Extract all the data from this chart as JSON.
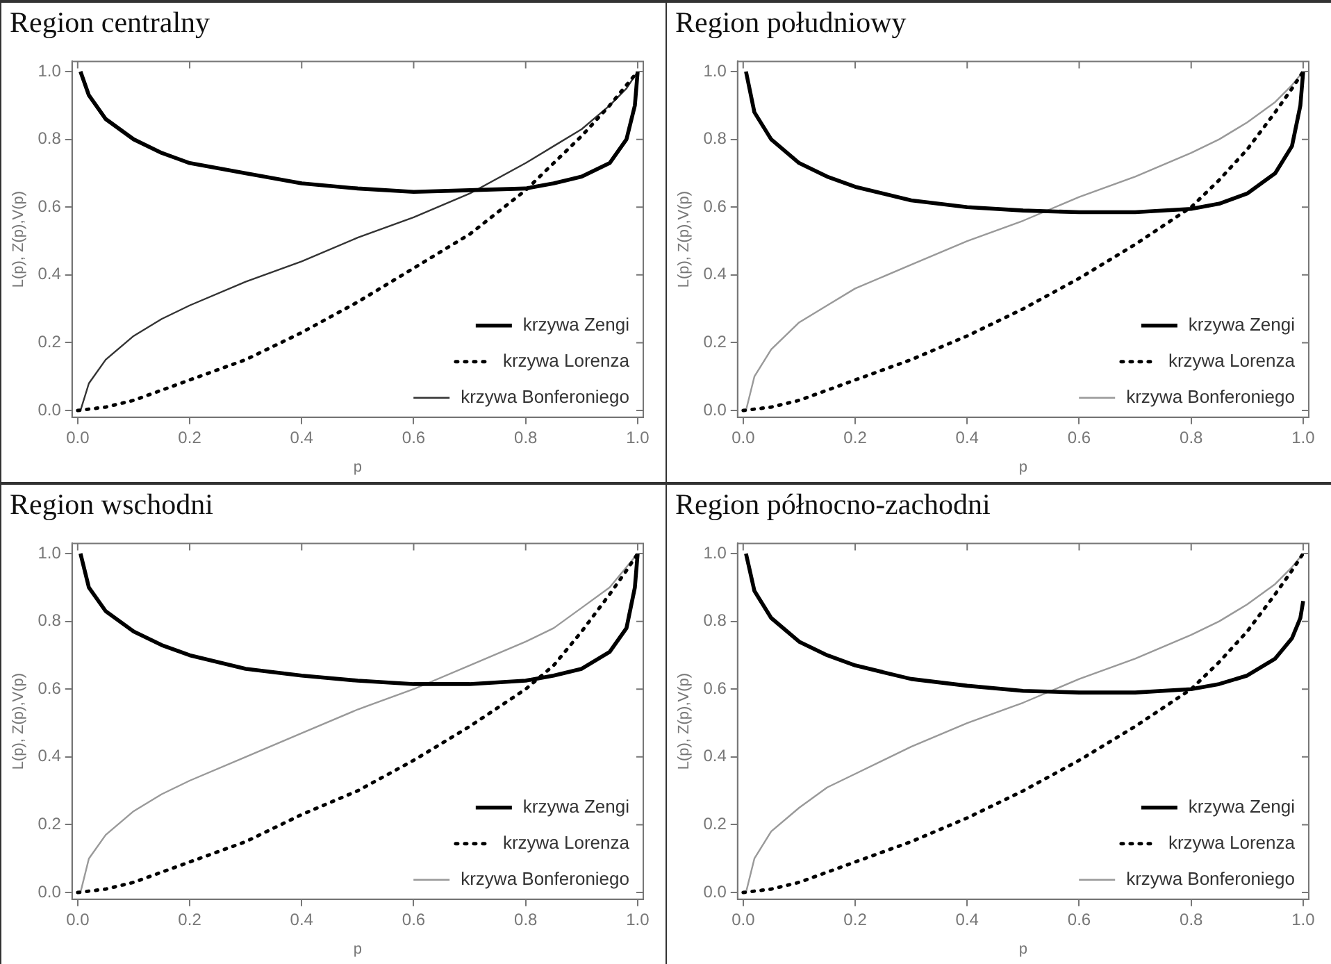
{
  "chart_data": [
    {
      "type": "line",
      "title": "Region centralny",
      "xlabel": "p",
      "ylabel": "L(p), Z(p),V(p)",
      "xlim": [
        -0.01,
        1.01
      ],
      "ylim": [
        -0.02,
        1.03
      ],
      "xticks": [
        {
          "value": 0,
          "label": "0.0"
        },
        {
          "value": 0.2,
          "label": "0.2"
        },
        {
          "value": 0.4,
          "label": "0.4"
        },
        {
          "value": 0.6,
          "label": "0.6"
        },
        {
          "value": 0.8,
          "label": "0.8"
        },
        {
          "value": 1,
          "label": "1.0"
        }
      ],
      "yticks": [
        {
          "value": 0,
          "label": "0.0"
        },
        {
          "value": 0.2,
          "label": "0.2"
        },
        {
          "value": 0.4,
          "label": "0.4"
        },
        {
          "value": 0.6,
          "label": "0.6"
        },
        {
          "value": 0.8,
          "label": "0.8"
        },
        {
          "value": 1,
          "label": "1.0"
        }
      ],
      "legend": "bottom right",
      "marker": "none",
      "series": [
        {
          "name": "krzywa Zengi",
          "color": "#000000",
          "line_style": "solid",
          "x": [
            0.005,
            0.02,
            0.05,
            0.1,
            0.15,
            0.2,
            0.3,
            0.4,
            0.5,
            0.6,
            0.7,
            0.8,
            0.85,
            0.9,
            0.95,
            0.98,
            0.995,
            1.0
          ],
          "values": [
            1.0,
            0.93,
            0.86,
            0.8,
            0.76,
            0.73,
            0.7,
            0.67,
            0.655,
            0.645,
            0.65,
            0.655,
            0.67,
            0.69,
            0.73,
            0.8,
            0.9,
            1.0
          ]
        },
        {
          "name": "krzywa Lorenza",
          "color": "#000000",
          "line_style": "dotted",
          "x": [
            0,
            0.05,
            0.1,
            0.15,
            0.2,
            0.3,
            0.4,
            0.5,
            0.6,
            0.7,
            0.8,
            0.85,
            0.9,
            0.95,
            0.98,
            1.0
          ],
          "values": [
            0,
            0.01,
            0.03,
            0.06,
            0.09,
            0.15,
            0.23,
            0.32,
            0.42,
            0.52,
            0.65,
            0.73,
            0.81,
            0.9,
            0.96,
            1.0
          ]
        },
        {
          "name": "krzywa Bonferoniego",
          "color": "#333333",
          "line_style": "solid",
          "x": [
            0.005,
            0.02,
            0.05,
            0.1,
            0.15,
            0.2,
            0.3,
            0.4,
            0.5,
            0.6,
            0.7,
            0.8,
            0.85,
            0.9,
            0.95,
            0.98,
            1.0
          ],
          "values": [
            0,
            0.08,
            0.15,
            0.22,
            0.27,
            0.31,
            0.38,
            0.44,
            0.51,
            0.57,
            0.64,
            0.73,
            0.78,
            0.83,
            0.9,
            0.95,
            1.0
          ]
        }
      ]
    },
    {
      "type": "line",
      "title": "Region południowy",
      "xlabel": "p",
      "ylabel": "L(p), Z(p),V(p)",
      "xlim": [
        -0.01,
        1.01
      ],
      "ylim": [
        -0.02,
        1.03
      ],
      "xticks": [
        {
          "value": 0,
          "label": "0.0"
        },
        {
          "value": 0.2,
          "label": "0.2"
        },
        {
          "value": 0.4,
          "label": "0.4"
        },
        {
          "value": 0.6,
          "label": "0.6"
        },
        {
          "value": 0.8,
          "label": "0.8"
        },
        {
          "value": 1,
          "label": "1.0"
        }
      ],
      "yticks": [
        {
          "value": 0,
          "label": "0.0"
        },
        {
          "value": 0.2,
          "label": "0.2"
        },
        {
          "value": 0.4,
          "label": "0.4"
        },
        {
          "value": 0.6,
          "label": "0.6"
        },
        {
          "value": 0.8,
          "label": "0.8"
        },
        {
          "value": 1,
          "label": "1.0"
        }
      ],
      "legend": "bottom right",
      "marker": "none",
      "series": [
        {
          "name": "krzywa Zengi",
          "color": "#000000",
          "line_style": "solid",
          "x": [
            0.005,
            0.02,
            0.05,
            0.1,
            0.15,
            0.2,
            0.3,
            0.4,
            0.5,
            0.6,
            0.7,
            0.8,
            0.85,
            0.9,
            0.95,
            0.98,
            0.995,
            1.0
          ],
          "values": [
            1.0,
            0.88,
            0.8,
            0.73,
            0.69,
            0.66,
            0.62,
            0.6,
            0.59,
            0.585,
            0.585,
            0.595,
            0.61,
            0.64,
            0.7,
            0.78,
            0.9,
            1.0
          ]
        },
        {
          "name": "krzywa Lorenza",
          "color": "#000000",
          "line_style": "dotted",
          "x": [
            0,
            0.05,
            0.1,
            0.15,
            0.2,
            0.3,
            0.4,
            0.5,
            0.6,
            0.7,
            0.8,
            0.85,
            0.9,
            0.95,
            0.98,
            1.0
          ],
          "values": [
            0,
            0.01,
            0.03,
            0.06,
            0.09,
            0.15,
            0.22,
            0.3,
            0.39,
            0.49,
            0.6,
            0.68,
            0.77,
            0.88,
            0.95,
            1.0
          ]
        },
        {
          "name": "krzywa Bonferoniego",
          "color": "#999999",
          "line_style": "solid",
          "x": [
            0.005,
            0.02,
            0.05,
            0.1,
            0.15,
            0.2,
            0.3,
            0.4,
            0.5,
            0.6,
            0.7,
            0.8,
            0.85,
            0.9,
            0.95,
            0.98,
            1.0
          ],
          "values": [
            0,
            0.1,
            0.18,
            0.26,
            0.31,
            0.36,
            0.43,
            0.5,
            0.56,
            0.63,
            0.69,
            0.76,
            0.8,
            0.85,
            0.91,
            0.96,
            1.0
          ]
        }
      ]
    },
    {
      "type": "line",
      "title": "Region wschodni",
      "xlabel": "p",
      "ylabel": "L(p), Z(p),V(p)",
      "xlim": [
        -0.01,
        1.01
      ],
      "ylim": [
        -0.02,
        1.03
      ],
      "xticks": [
        {
          "value": 0,
          "label": "0.0"
        },
        {
          "value": 0.2,
          "label": "0.2"
        },
        {
          "value": 0.4,
          "label": "0.4"
        },
        {
          "value": 0.6,
          "label": "0.6"
        },
        {
          "value": 0.8,
          "label": "0.8"
        },
        {
          "value": 1,
          "label": "1.0"
        }
      ],
      "yticks": [
        {
          "value": 0,
          "label": "0.0"
        },
        {
          "value": 0.2,
          "label": "0.2"
        },
        {
          "value": 0.4,
          "label": "0.4"
        },
        {
          "value": 0.6,
          "label": "0.6"
        },
        {
          "value": 0.8,
          "label": "0.8"
        },
        {
          "value": 1,
          "label": "1.0"
        }
      ],
      "legend": "bottom right",
      "marker": "none",
      "series": [
        {
          "name": "krzywa Zengi",
          "color": "#000000",
          "line_style": "solid",
          "x": [
            0.005,
            0.02,
            0.05,
            0.1,
            0.15,
            0.2,
            0.3,
            0.4,
            0.5,
            0.6,
            0.7,
            0.8,
            0.85,
            0.9,
            0.95,
            0.98,
            0.995,
            1.0
          ],
          "values": [
            1.0,
            0.9,
            0.83,
            0.77,
            0.73,
            0.7,
            0.66,
            0.64,
            0.625,
            0.615,
            0.615,
            0.625,
            0.64,
            0.66,
            0.71,
            0.78,
            0.9,
            1.0
          ]
        },
        {
          "name": "krzywa Lorenza",
          "color": "#000000",
          "line_style": "dotted",
          "x": [
            0,
            0.05,
            0.1,
            0.15,
            0.2,
            0.3,
            0.4,
            0.5,
            0.6,
            0.7,
            0.8,
            0.85,
            0.9,
            0.95,
            0.98,
            1.0
          ],
          "values": [
            0,
            0.01,
            0.03,
            0.06,
            0.09,
            0.15,
            0.23,
            0.3,
            0.39,
            0.49,
            0.6,
            0.67,
            0.77,
            0.88,
            0.95,
            1.0
          ]
        },
        {
          "name": "krzywa Bonferoniego",
          "color": "#999999",
          "line_style": "solid",
          "x": [
            0.005,
            0.02,
            0.05,
            0.1,
            0.15,
            0.2,
            0.3,
            0.4,
            0.5,
            0.6,
            0.7,
            0.8,
            0.85,
            0.9,
            0.95,
            0.98,
            1.0
          ],
          "values": [
            0,
            0.1,
            0.17,
            0.24,
            0.29,
            0.33,
            0.4,
            0.47,
            0.54,
            0.6,
            0.67,
            0.74,
            0.78,
            0.84,
            0.9,
            0.96,
            1.0
          ]
        }
      ]
    },
    {
      "type": "line",
      "title": "Region północno-zachodni",
      "xlabel": "p",
      "ylabel": "L(p), Z(p),V(p)",
      "xlim": [
        -0.01,
        1.01
      ],
      "ylim": [
        -0.02,
        1.03
      ],
      "xticks": [
        {
          "value": 0,
          "label": "0.0"
        },
        {
          "value": 0.2,
          "label": "0.2"
        },
        {
          "value": 0.4,
          "label": "0.4"
        },
        {
          "value": 0.6,
          "label": "0.6"
        },
        {
          "value": 0.8,
          "label": "0.8"
        },
        {
          "value": 1,
          "label": "1.0"
        }
      ],
      "yticks": [
        {
          "value": 0,
          "label": "0.0"
        },
        {
          "value": 0.2,
          "label": "0.2"
        },
        {
          "value": 0.4,
          "label": "0.4"
        },
        {
          "value": 0.6,
          "label": "0.6"
        },
        {
          "value": 0.8,
          "label": "0.8"
        },
        {
          "value": 1,
          "label": "1.0"
        }
      ],
      "legend": "bottom right",
      "marker": "none",
      "series": [
        {
          "name": "krzywa Zengi",
          "color": "#000000",
          "line_style": "solid",
          "x": [
            0.005,
            0.02,
            0.05,
            0.1,
            0.15,
            0.2,
            0.3,
            0.4,
            0.5,
            0.6,
            0.7,
            0.8,
            0.85,
            0.9,
            0.95,
            0.98,
            0.995,
            1.0
          ],
          "values": [
            1.0,
            0.89,
            0.81,
            0.74,
            0.7,
            0.67,
            0.63,
            0.61,
            0.595,
            0.59,
            0.59,
            0.6,
            0.615,
            0.64,
            0.69,
            0.75,
            0.81,
            0.86
          ]
        },
        {
          "name": "krzywa Lorenza",
          "color": "#000000",
          "line_style": "dotted",
          "x": [
            0,
            0.05,
            0.1,
            0.15,
            0.2,
            0.3,
            0.4,
            0.5,
            0.6,
            0.7,
            0.8,
            0.85,
            0.9,
            0.95,
            0.98,
            1.0
          ],
          "values": [
            0,
            0.01,
            0.03,
            0.06,
            0.09,
            0.15,
            0.22,
            0.3,
            0.39,
            0.49,
            0.6,
            0.68,
            0.77,
            0.88,
            0.95,
            1.0
          ]
        },
        {
          "name": "krzywa Bonferoniego",
          "color": "#999999",
          "line_style": "solid",
          "x": [
            0.005,
            0.02,
            0.05,
            0.1,
            0.15,
            0.2,
            0.3,
            0.4,
            0.5,
            0.6,
            0.7,
            0.8,
            0.85,
            0.9,
            0.95,
            0.98,
            1.0
          ],
          "values": [
            0,
            0.1,
            0.18,
            0.25,
            0.31,
            0.35,
            0.43,
            0.5,
            0.56,
            0.63,
            0.69,
            0.76,
            0.8,
            0.85,
            0.91,
            0.96,
            1.0
          ]
        }
      ]
    }
  ]
}
